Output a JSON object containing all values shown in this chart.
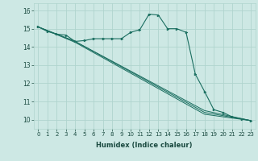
{
  "xlabel": "Humidex (Indice chaleur)",
  "bg_color": "#cde8e4",
  "grid_color": "#b0d4ce",
  "line_color": "#1a6e60",
  "xlim": [
    -0.5,
    23.5
  ],
  "ylim": [
    9.5,
    16.4
  ],
  "xticks": [
    0,
    1,
    2,
    3,
    4,
    5,
    6,
    7,
    8,
    9,
    10,
    11,
    12,
    13,
    14,
    15,
    16,
    17,
    18,
    19,
    20,
    21,
    22,
    23
  ],
  "yticks": [
    10,
    11,
    12,
    13,
    14,
    15,
    16
  ],
  "series": [
    {
      "x": [
        0,
        1,
        2,
        3,
        4,
        5,
        6,
        7,
        8,
        9,
        10,
        11,
        12,
        13,
        14,
        15,
        16,
        17,
        18,
        19,
        20,
        21,
        22,
        23
      ],
      "y": [
        15.1,
        14.85,
        14.7,
        14.65,
        14.3,
        14.35,
        14.45,
        14.45,
        14.45,
        14.45,
        14.8,
        14.95,
        15.8,
        15.75,
        15.0,
        15.0,
        14.8,
        12.5,
        11.55,
        10.55,
        10.4,
        10.15,
        10.05,
        9.95
      ],
      "marker": true
    },
    {
      "x": [
        0,
        4,
        18,
        23
      ],
      "y": [
        15.1,
        14.3,
        10.5,
        9.95
      ],
      "marker": false
    },
    {
      "x": [
        0,
        4,
        18,
        23
      ],
      "y": [
        15.1,
        14.3,
        10.4,
        9.95
      ],
      "marker": false
    },
    {
      "x": [
        0,
        4,
        18,
        23
      ],
      "y": [
        15.1,
        14.25,
        10.3,
        9.95
      ],
      "marker": false
    }
  ]
}
